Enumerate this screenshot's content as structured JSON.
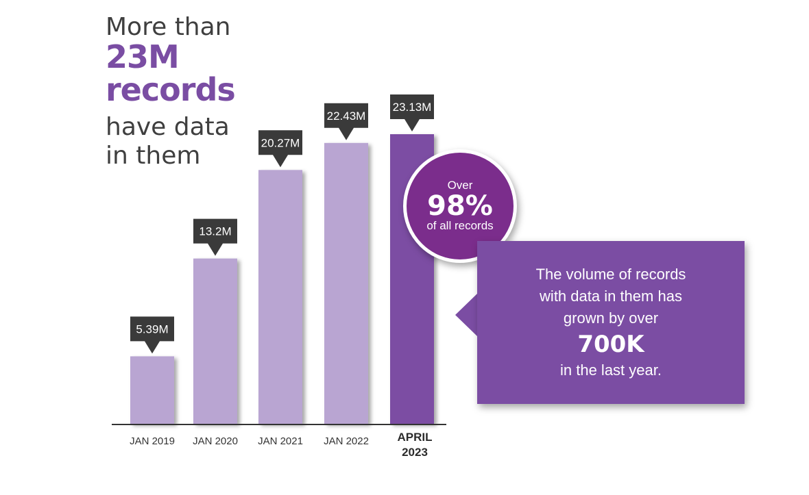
{
  "headline": {
    "line1": "More than",
    "line2": "23M",
    "line3": "records",
    "line4": "have data",
    "line5": "in them"
  },
  "chart_data": {
    "type": "bar",
    "categories": [
      "JAN 2019",
      "JAN 2020",
      "JAN 2021",
      "JAN 2022",
      "APRIL 2023"
    ],
    "values": [
      5.39,
      13.2,
      20.27,
      22.43,
      23.13
    ],
    "value_labels": [
      "5.39M",
      "13.2M",
      "20.27M",
      "22.43M",
      "23.13M"
    ],
    "highlight_index": 4,
    "ylim": [
      0,
      23.13
    ],
    "grid": false,
    "colors": {
      "bar": "#b9a5d2",
      "bar_highlight": "#7b4da3",
      "label_bg": "#3a3a3a",
      "axis": "#333333"
    }
  },
  "percent_badge": {
    "pre": "Over",
    "value": "98%",
    "post": "of all records",
    "color": "#7b2d8c"
  },
  "callout": {
    "line1": "The volume of records",
    "line2": "with data in them has",
    "line3": "grown by over",
    "big": "700K",
    "line4": "in the last year.",
    "color": "#7b4da3"
  }
}
